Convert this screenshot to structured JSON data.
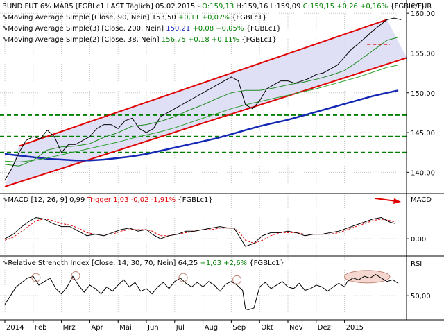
{
  "chart_data": {
    "type": "line",
    "instrument": "BUND FUT 6% MAR5",
    "header": {
      "prefix": "BUND FUT 6% MAR5 [FGBLc1 LAST Täglich] 05.02.2015 - ",
      "open": "O:159,13",
      "high": "H:159,16",
      "low": "L:159,09",
      "close": "C:159,15 +0,26 +0,16%",
      "suffix": "{FGBLc1}"
    },
    "currency_label": "€/EUR",
    "colors": {
      "background": "#ffffff",
      "grid": "#c8c8c8",
      "channel_fill": "#dcdcf5",
      "channel_line": "#e00000",
      "support_line": "#008000",
      "ma90": "#30a030",
      "ma200": "#1428b4",
      "ma38": "#1e8c1e",
      "price": "#000000",
      "macd_line": "#000000",
      "macd_trigger": "#e00000",
      "rsi_line": "#000000",
      "rsi_ellipse_fill": "#f4d8d0",
      "rsi_ellipse_stroke": "#c08070",
      "arrow": "#e00000",
      "value_green": "#008000",
      "value_blue": "#1428b4",
      "value_red": "#e00000"
    },
    "price_panel": {
      "ylim": [
        137.5,
        161.5
      ],
      "yticks": [
        {
          "v": 140,
          "label": "140,00"
        },
        {
          "v": 145,
          "label": "145,00"
        },
        {
          "v": 150,
          "label": "150,00"
        },
        {
          "v": 155,
          "label": "155,00"
        },
        {
          "v": 160,
          "label": "160,00"
        }
      ],
      "support_levels": [
        147.2,
        144.5,
        142.5
      ],
      "channel": {
        "upper": [
          [
            0.5,
            143.3
          ],
          [
            13.5,
            159.2
          ]
        ],
        "lower": [
          [
            0.0,
            138.2
          ],
          [
            14.2,
            154.4
          ]
        ]
      },
      "legend": [
        {
          "name": "Moving Average Simple [Close, 90, Nein]",
          "value": "153,50",
          "change": "+0,11 +0,07%",
          "suffix": "{FGBLc1}"
        },
        {
          "name": "Moving Average Simple(3) [Close, 200, Nein]",
          "value": "150,21",
          "change": "+0,08 +0,05%",
          "suffix": "{FGBLc1}"
        },
        {
          "name": "Moving Average Simple(2) [Close, 38, Nein]",
          "value": "156,75",
          "change": "+0,18 +0,11%",
          "suffix": "{FGBLc1}"
        }
      ],
      "price": [
        [
          0.0,
          139
        ],
        [
          0.25,
          140.5
        ],
        [
          0.5,
          142.5
        ],
        [
          0.75,
          144
        ],
        [
          1.0,
          144.5
        ],
        [
          1.25,
          144.2
        ],
        [
          1.5,
          145.3
        ],
        [
          1.75,
          144.5
        ],
        [
          2.0,
          142.5
        ],
        [
          2.25,
          143.5
        ],
        [
          2.5,
          143.5
        ],
        [
          2.75,
          144
        ],
        [
          3.0,
          144.5
        ],
        [
          3.25,
          145.5
        ],
        [
          3.5,
          146
        ],
        [
          3.75,
          146
        ],
        [
          4.0,
          145.5
        ],
        [
          4.25,
          146.5
        ],
        [
          4.5,
          146.8
        ],
        [
          4.75,
          145.5
        ],
        [
          5.0,
          145
        ],
        [
          5.25,
          145.5
        ],
        [
          5.5,
          147
        ],
        [
          5.75,
          147.5
        ],
        [
          6.0,
          148
        ],
        [
          6.25,
          148.5
        ],
        [
          6.5,
          149
        ],
        [
          6.75,
          149.5
        ],
        [
          7.0,
          150
        ],
        [
          7.25,
          150.5
        ],
        [
          7.5,
          151
        ],
        [
          7.75,
          151.5
        ],
        [
          8.0,
          152
        ],
        [
          8.25,
          151.5
        ],
        [
          8.5,
          148.5
        ],
        [
          8.75,
          148
        ],
        [
          9.0,
          149
        ],
        [
          9.25,
          150.5
        ],
        [
          9.5,
          151
        ],
        [
          9.75,
          151.5
        ],
        [
          10.0,
          151.5
        ],
        [
          10.25,
          151.2
        ],
        [
          10.5,
          151.5
        ],
        [
          10.75,
          151.8
        ],
        [
          11.0,
          152.3
        ],
        [
          11.25,
          152.5
        ],
        [
          11.5,
          153
        ],
        [
          11.75,
          153.5
        ],
        [
          12.0,
          154.5
        ],
        [
          12.25,
          155.5
        ],
        [
          12.5,
          156.2
        ],
        [
          12.75,
          157
        ],
        [
          13.0,
          157.8
        ],
        [
          13.25,
          158.5
        ],
        [
          13.5,
          159.2
        ],
        [
          13.75,
          159.4
        ],
        [
          14.0,
          159.2
        ]
      ],
      "ma38": [
        [
          0.0,
          141
        ],
        [
          0.5,
          140.8
        ],
        [
          1.0,
          141.5
        ],
        [
          1.5,
          142.8
        ],
        [
          2.0,
          143.2
        ],
        [
          2.5,
          143.3
        ],
        [
          3.0,
          143.6
        ],
        [
          3.5,
          144.4
        ],
        [
          4.0,
          145
        ],
        [
          4.5,
          145.8
        ],
        [
          5.0,
          146
        ],
        [
          5.5,
          146.4
        ],
        [
          6.0,
          147
        ],
        [
          6.5,
          147.8
        ],
        [
          7.0,
          148.5
        ],
        [
          7.5,
          149.3
        ],
        [
          8.0,
          150
        ],
        [
          8.5,
          150.3
        ],
        [
          9.0,
          150.3
        ],
        [
          9.5,
          150.6
        ],
        [
          10.0,
          151
        ],
        [
          10.5,
          151.3
        ],
        [
          11.0,
          151.7
        ],
        [
          11.5,
          152.2
        ],
        [
          12.0,
          152.8
        ],
        [
          12.5,
          154
        ],
        [
          13.0,
          155.3
        ],
        [
          13.5,
          156.6
        ],
        [
          13.9,
          157
        ]
      ],
      "ma90": [
        [
          0.0,
          141.4
        ],
        [
          0.5,
          141.3
        ],
        [
          1.0,
          141.5
        ],
        [
          1.5,
          141.8
        ],
        [
          2.0,
          142.2
        ],
        [
          2.5,
          142.6
        ],
        [
          3.0,
          143
        ],
        [
          3.5,
          143.4
        ],
        [
          4.0,
          143.8
        ],
        [
          4.5,
          144.3
        ],
        [
          5.0,
          144.7
        ],
        [
          5.5,
          145.1
        ],
        [
          6.0,
          145.6
        ],
        [
          6.5,
          146.2
        ],
        [
          7.0,
          146.8
        ],
        [
          7.5,
          147.4
        ],
        [
          8.0,
          148
        ],
        [
          8.5,
          148.5
        ],
        [
          9.0,
          148.9
        ],
        [
          9.5,
          149.3
        ],
        [
          10.0,
          149.7
        ],
        [
          10.5,
          150.1
        ],
        [
          11.0,
          150.5
        ],
        [
          11.5,
          151
        ],
        [
          12.0,
          151.5
        ],
        [
          12.5,
          152
        ],
        [
          13.0,
          152.6
        ],
        [
          13.5,
          153.2
        ],
        [
          13.9,
          153.5
        ]
      ],
      "ma200": [
        [
          0.0,
          142.3
        ],
        [
          0.5,
          142.1
        ],
        [
          1.0,
          141.9
        ],
        [
          1.5,
          141.7
        ],
        [
          2.0,
          141.6
        ],
        [
          2.5,
          141.5
        ],
        [
          3.0,
          141.5
        ],
        [
          3.5,
          141.6
        ],
        [
          4.0,
          141.8
        ],
        [
          4.5,
          142
        ],
        [
          5.0,
          142.3
        ],
        [
          5.5,
          142.7
        ],
        [
          6.0,
          143.1
        ],
        [
          6.5,
          143.5
        ],
        [
          7.0,
          143.9
        ],
        [
          7.5,
          144.3
        ],
        [
          8.0,
          144.8
        ],
        [
          8.5,
          145.3
        ],
        [
          9.0,
          145.8
        ],
        [
          9.5,
          146.2
        ],
        [
          10.0,
          146.6
        ],
        [
          10.5,
          147.1
        ],
        [
          11.0,
          147.6
        ],
        [
          11.5,
          148.1
        ],
        [
          12.0,
          148.6
        ],
        [
          12.5,
          149.1
        ],
        [
          13.0,
          149.6
        ],
        [
          13.5,
          150
        ],
        [
          13.9,
          150.3
        ]
      ]
    },
    "macd_panel": {
      "label": "MACD [12, 26, 9]",
      "value": "0,99",
      "trigger_label": "Trigger",
      "trigger_value": "1,03 -0,02 -1,91%",
      "suffix": "{FGBLc1}",
      "ylim": [
        -1.0,
        2.2
      ],
      "yticks": [
        {
          "v": 0,
          "label": "0,00"
        }
      ],
      "axis_name": "MACD",
      "macd": [
        [
          0.0,
          0
        ],
        [
          0.3,
          0.3
        ],
        [
          0.6,
          0.8
        ],
        [
          0.9,
          1.2
        ],
        [
          1.1,
          1.4
        ],
        [
          1.4,
          1.3
        ],
        [
          1.7,
          1.0
        ],
        [
          2.0,
          0.8
        ],
        [
          2.3,
          0.8
        ],
        [
          2.6,
          0.5
        ],
        [
          2.9,
          0.2
        ],
        [
          3.2,
          0.3
        ],
        [
          3.5,
          0.2
        ],
        [
          3.8,
          0.4
        ],
        [
          4.1,
          0.6
        ],
        [
          4.4,
          0.7
        ],
        [
          4.7,
          0.5
        ],
        [
          5.0,
          0.6
        ],
        [
          5.2,
          0.3
        ],
        [
          5.5,
          0.0
        ],
        [
          5.8,
          0.2
        ],
        [
          6.1,
          0.3
        ],
        [
          6.4,
          0.5
        ],
        [
          6.7,
          0.5
        ],
        [
          7.0,
          0.6
        ],
        [
          7.3,
          0.7
        ],
        [
          7.6,
          0.8
        ],
        [
          7.9,
          0.7
        ],
        [
          8.1,
          0.7
        ],
        [
          8.3,
          0.1
        ],
        [
          8.5,
          -0.5
        ],
        [
          8.8,
          -0.3
        ],
        [
          9.1,
          0.2
        ],
        [
          9.4,
          0.4
        ],
        [
          9.7,
          0.4
        ],
        [
          10.0,
          0.5
        ],
        [
          10.3,
          0.4
        ],
        [
          10.6,
          0.2
        ],
        [
          10.9,
          0.3
        ],
        [
          11.2,
          0.3
        ],
        [
          11.5,
          0.4
        ],
        [
          11.8,
          0.5
        ],
        [
          12.1,
          0.7
        ],
        [
          12.4,
          0.9
        ],
        [
          12.7,
          1.1
        ],
        [
          13.0,
          1.3
        ],
        [
          13.3,
          1.4
        ],
        [
          13.6,
          1.1
        ],
        [
          13.8,
          1.0
        ]
      ],
      "trigger": [
        [
          0.0,
          -0.1
        ],
        [
          0.3,
          0.1
        ],
        [
          0.6,
          0.5
        ],
        [
          0.9,
          0.9
        ],
        [
          1.1,
          1.2
        ],
        [
          1.4,
          1.3
        ],
        [
          1.7,
          1.2
        ],
        [
          2.0,
          1.0
        ],
        [
          2.3,
          0.9
        ],
        [
          2.6,
          0.7
        ],
        [
          2.9,
          0.4
        ],
        [
          3.2,
          0.3
        ],
        [
          3.5,
          0.3
        ],
        [
          3.8,
          0.3
        ],
        [
          4.1,
          0.5
        ],
        [
          4.4,
          0.6
        ],
        [
          4.7,
          0.6
        ],
        [
          5.0,
          0.6
        ],
        [
          5.2,
          0.5
        ],
        [
          5.5,
          0.2
        ],
        [
          5.8,
          0.2
        ],
        [
          6.1,
          0.3
        ],
        [
          6.4,
          0.4
        ],
        [
          6.7,
          0.5
        ],
        [
          7.0,
          0.6
        ],
        [
          7.3,
          0.6
        ],
        [
          7.6,
          0.7
        ],
        [
          7.9,
          0.7
        ],
        [
          8.1,
          0.7
        ],
        [
          8.3,
          0.4
        ],
        [
          8.5,
          -0.1
        ],
        [
          8.8,
          -0.3
        ],
        [
          9.1,
          -0.1
        ],
        [
          9.4,
          0.2
        ],
        [
          9.7,
          0.4
        ],
        [
          10.0,
          0.4
        ],
        [
          10.3,
          0.4
        ],
        [
          10.6,
          0.3
        ],
        [
          10.9,
          0.3
        ],
        [
          11.2,
          0.3
        ],
        [
          11.5,
          0.3
        ],
        [
          11.8,
          0.4
        ],
        [
          12.1,
          0.6
        ],
        [
          12.4,
          0.8
        ],
        [
          12.7,
          1.0
        ],
        [
          13.0,
          1.2
        ],
        [
          13.3,
          1.3
        ],
        [
          13.6,
          1.2
        ],
        [
          13.8,
          1.1
        ]
      ]
    },
    "rsi_panel": {
      "label": "Relative Strength Index [Close, 14, 30, 70, Nein]",
      "value": "64,25",
      "change": "+1,63 +2,6%",
      "suffix": "{FGBLc1}",
      "ylim": [
        25,
        80
      ],
      "yticks": [
        {
          "v": 50,
          "label": "50,00"
        }
      ],
      "axis_name": "RSI",
      "rsi": [
        [
          0.0,
          40
        ],
        [
          0.2,
          50
        ],
        [
          0.4,
          60
        ],
        [
          0.6,
          65
        ],
        [
          0.8,
          70
        ],
        [
          1.0,
          72
        ],
        [
          1.2,
          62
        ],
        [
          1.4,
          66
        ],
        [
          1.6,
          70
        ],
        [
          1.8,
          58
        ],
        [
          2.0,
          52
        ],
        [
          2.2,
          60
        ],
        [
          2.4,
          72
        ],
        [
          2.6,
          62
        ],
        [
          2.8,
          54
        ],
        [
          3.0,
          62
        ],
        [
          3.2,
          58
        ],
        [
          3.4,
          52
        ],
        [
          3.6,
          60
        ],
        [
          3.8,
          55
        ],
        [
          4.0,
          62
        ],
        [
          4.2,
          68
        ],
        [
          4.4,
          60
        ],
        [
          4.6,
          65
        ],
        [
          4.8,
          55
        ],
        [
          5.0,
          58
        ],
        [
          5.2,
          52
        ],
        [
          5.4,
          60
        ],
        [
          5.6,
          65
        ],
        [
          5.8,
          58
        ],
        [
          6.0,
          66
        ],
        [
          6.2,
          70
        ],
        [
          6.4,
          64
        ],
        [
          6.6,
          60
        ],
        [
          6.8,
          65
        ],
        [
          7.0,
          60
        ],
        [
          7.2,
          66
        ],
        [
          7.4,
          62
        ],
        [
          7.6,
          55
        ],
        [
          7.8,
          63
        ],
        [
          8.0,
          66
        ],
        [
          8.2,
          62
        ],
        [
          8.4,
          56
        ],
        [
          8.5,
          35
        ],
        [
          8.6,
          34
        ],
        [
          8.8,
          36
        ],
        [
          9.0,
          60
        ],
        [
          9.2,
          65
        ],
        [
          9.4,
          58
        ],
        [
          9.6,
          62
        ],
        [
          9.8,
          66
        ],
        [
          10.0,
          60
        ],
        [
          10.2,
          58
        ],
        [
          10.4,
          64
        ],
        [
          10.6,
          56
        ],
        [
          10.8,
          58
        ],
        [
          11.0,
          62
        ],
        [
          11.2,
          60
        ],
        [
          11.4,
          55
        ],
        [
          11.6,
          60
        ],
        [
          11.8,
          64
        ],
        [
          12.0,
          60
        ],
        [
          12.1,
          66
        ],
        [
          12.3,
          70
        ],
        [
          12.5,
          68
        ],
        [
          12.7,
          72
        ],
        [
          12.9,
          70
        ],
        [
          13.1,
          74
        ],
        [
          13.3,
          70
        ],
        [
          13.5,
          66
        ],
        [
          13.7,
          68
        ],
        [
          13.9,
          64
        ]
      ],
      "highlight_circles": [
        [
          1.1,
          70.5
        ],
        [
          2.5,
          72.5
        ],
        [
          6.3,
          70.5
        ],
        [
          8.2,
          68.0
        ]
      ],
      "highlight_ellipse": {
        "x0": 12.0,
        "x1": 13.6,
        "y": 71.5
      }
    },
    "x_axis": {
      "months": [
        "2014",
        "Feb",
        "Mrz",
        "Apr",
        "Mai",
        "Jun",
        "Jul",
        "Aug",
        "Sep",
        "Okt",
        "Nov",
        "Dez",
        "2015"
      ]
    }
  }
}
